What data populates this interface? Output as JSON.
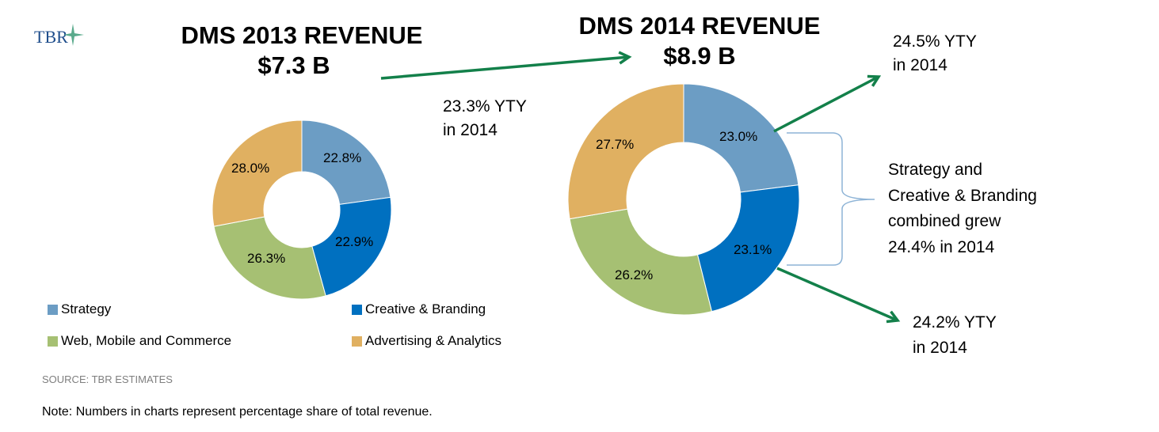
{
  "logo": {
    "text": "TBR"
  },
  "colors": {
    "Strategy": "#6c9dc4",
    "Creative & Branding": "#0070c0",
    "Web, Mobile and Commerce": "#a6c073",
    "Advertising & Analytics": "#e0b061",
    "arrow": "#13804a",
    "brace": "#8db3d6"
  },
  "chart_data": [
    {
      "type": "pie",
      "variant": "donut",
      "title": "DMS 2013 REVENUE",
      "subtitle": "$7.3 B",
      "categories": [
        "Strategy",
        "Creative & Branding",
        "Web, Mobile and Commerce",
        "Advertising & Analytics"
      ],
      "values": [
        22.8,
        22.9,
        26.3,
        28.0
      ],
      "labels": [
        "22.8%",
        "22.9%",
        "26.3%",
        "28.0%"
      ]
    },
    {
      "type": "pie",
      "variant": "donut",
      "title": "DMS 2014 REVENUE",
      "subtitle": "$8.9 B",
      "categories": [
        "Strategy",
        "Creative & Branding",
        "Web, Mobile and Commerce",
        "Advertising & Analytics"
      ],
      "values": [
        23.0,
        23.1,
        26.2,
        27.7
      ],
      "labels": [
        "23.0%",
        "23.1%",
        "26.2%",
        "27.7%"
      ]
    }
  ],
  "legend": [
    {
      "label": "Strategy"
    },
    {
      "label": "Creative & Branding"
    },
    {
      "label": "Web, Mobile and Commerce"
    },
    {
      "label": "Advertising & Analytics"
    }
  ],
  "annotations": {
    "total_growth": [
      "23.3% YTY",
      "in 2014"
    ],
    "strategy_growth": [
      "24.5% YTY",
      "in 2014"
    ],
    "combined_growth": [
      "Strategy and",
      "Creative & Branding",
      "combined grew",
      "24.4% in 2014"
    ],
    "creative_growth": [
      "24.2% YTY",
      "in 2014"
    ]
  },
  "source": "SOURCE: TBR ESTIMATES",
  "note": "Note: Numbers in charts represent percentage share of total revenue."
}
